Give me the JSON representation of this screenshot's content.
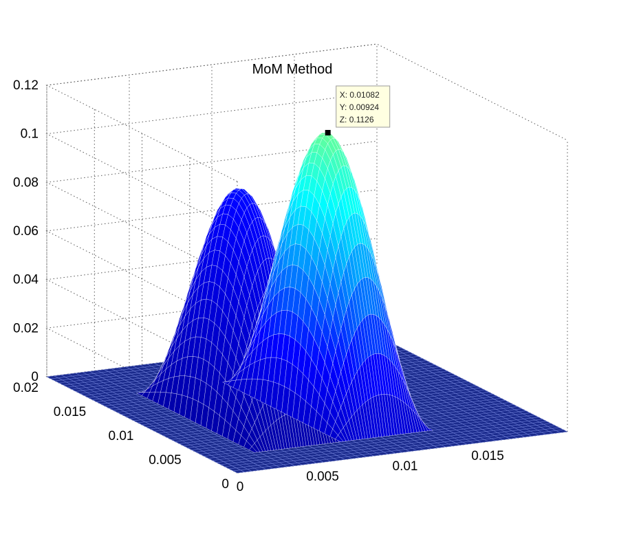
{
  "chart_data": {
    "type": "surface",
    "title": "MoM Method",
    "xlabel": "",
    "ylabel": "",
    "zlabel": "",
    "xlim": [
      0,
      0.02
    ],
    "ylim": [
      0,
      0.02
    ],
    "zlim": [
      0,
      0.12
    ],
    "x_ticks": [
      "0",
      "0.005",
      "0.01",
      "0.015"
    ],
    "y_ticks": [
      "0",
      "0.005",
      "0.01",
      "0.015",
      "0.02"
    ],
    "z_ticks": [
      "0",
      "0.02",
      "0.04",
      "0.06",
      "0.08",
      "0.1",
      "0.12"
    ],
    "grid": true,
    "colormap": [
      "#00007f",
      "#0000ff",
      "#00ffff",
      "#ffff00",
      "#ff0000"
    ],
    "peaks": [
      {
        "x": 0.0056,
        "y": 0.00924,
        "z": 0.094
      },
      {
        "x": 0.01082,
        "y": 0.00924,
        "z": 0.1126
      }
    ],
    "datatip": {
      "x_label": "X: 0.01082",
      "y_label": "Y: 0.00924",
      "z_label": "Z: 0.1126",
      "x": 0.01082,
      "y": 0.00924,
      "z": 0.1126
    }
  }
}
